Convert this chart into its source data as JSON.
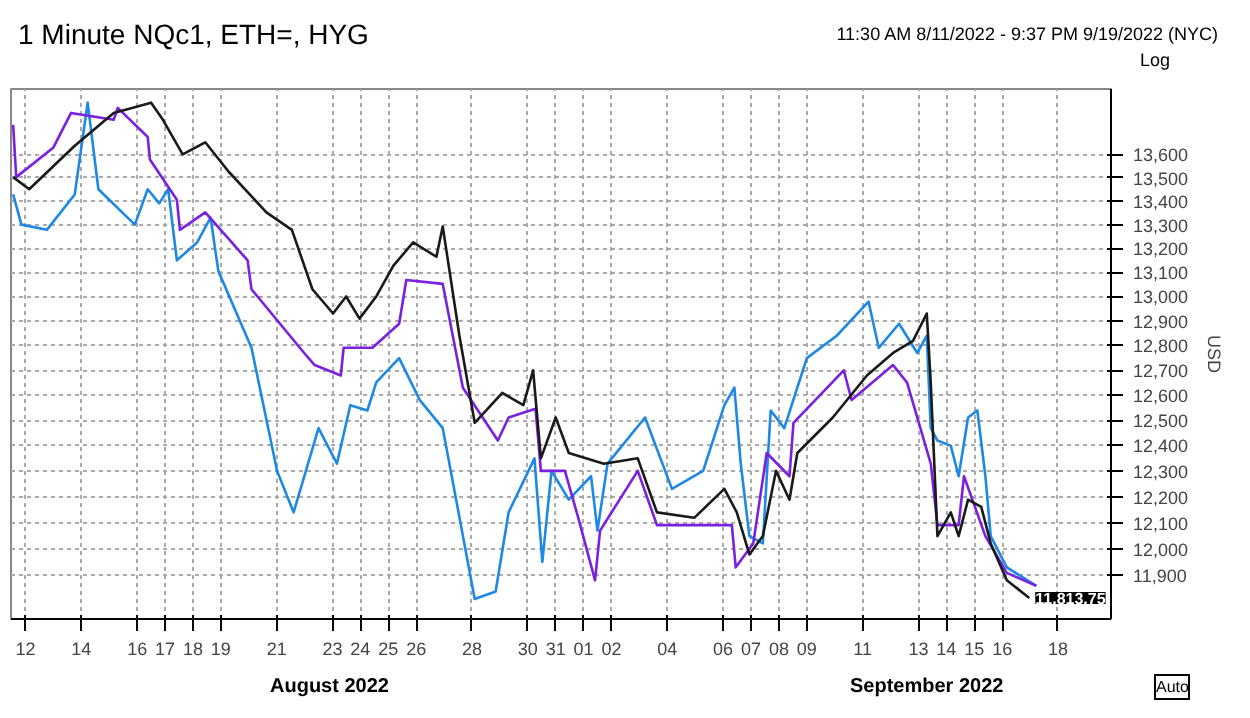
{
  "chart_data": {
    "type": "line",
    "title": "1 Minute NQc1, ETH=, HYG",
    "subtitle": "11:30 AM 8/11/2022 - 9:37 PM 9/19/2022 (NYC)",
    "ylabel": "USD",
    "log": true,
    "grid": true,
    "marker": "none",
    "line_style": "solid",
    "xlim": [
      "2022-08-11T11:30",
      "2022-09-19T21:37"
    ],
    "ylim": [
      11735,
      13885
    ],
    "xticks": [
      {
        "value": "2022-08-12",
        "label": "12"
      },
      {
        "value": "2022-08-14",
        "label": "14"
      },
      {
        "value": "2022-08-16",
        "label": "16"
      },
      {
        "value": "2022-08-17",
        "label": "17"
      },
      {
        "value": "2022-08-18",
        "label": "18"
      },
      {
        "value": "2022-08-19",
        "label": "19"
      },
      {
        "value": "2022-08-21",
        "label": "21"
      },
      {
        "value": "2022-08-23",
        "label": "23"
      },
      {
        "value": "2022-08-24",
        "label": "24"
      },
      {
        "value": "2022-08-25",
        "label": "25"
      },
      {
        "value": "2022-08-26",
        "label": "26"
      },
      {
        "value": "2022-08-28",
        "label": "28"
      },
      {
        "value": "2022-08-30",
        "label": "30"
      },
      {
        "value": "2022-08-31",
        "label": "31"
      },
      {
        "value": "2022-09-01",
        "label": "01"
      },
      {
        "value": "2022-09-02",
        "label": "02"
      },
      {
        "value": "2022-09-04",
        "label": "04"
      },
      {
        "value": "2022-09-06",
        "label": "06"
      },
      {
        "value": "2022-09-07",
        "label": "07"
      },
      {
        "value": "2022-09-08",
        "label": "08"
      },
      {
        "value": "2022-09-09",
        "label": "09"
      },
      {
        "value": "2022-09-11",
        "label": "11"
      },
      {
        "value": "2022-09-13",
        "label": "13"
      },
      {
        "value": "2022-09-14",
        "label": "14"
      },
      {
        "value": "2022-09-15",
        "label": "15"
      },
      {
        "value": "2022-09-16",
        "label": "16"
      },
      {
        "value": "2022-09-18",
        "label": "18"
      }
    ],
    "yticks": [
      {
        "value": 11900,
        "label": "11,900"
      },
      {
        "value": 12000,
        "label": "12,000"
      },
      {
        "value": 12100,
        "label": "12,100"
      },
      {
        "value": 12200,
        "label": "12,200"
      },
      {
        "value": 12300,
        "label": "12,300"
      },
      {
        "value": 12400,
        "label": "12,400"
      },
      {
        "value": 12500,
        "label": "12,500"
      },
      {
        "value": 12600,
        "label": "12,600"
      },
      {
        "value": 12700,
        "label": "12,700"
      },
      {
        "value": 12800,
        "label": "12,800"
      },
      {
        "value": 12900,
        "label": "12,900"
      },
      {
        "value": 13000,
        "label": "13,000"
      },
      {
        "value": 13100,
        "label": "13,100"
      },
      {
        "value": 13200,
        "label": "13,200"
      },
      {
        "value": 13300,
        "label": "13,300"
      },
      {
        "value": 13400,
        "label": "13,400"
      },
      {
        "value": 13500,
        "label": "13,500"
      },
      {
        "value": 13600,
        "label": "13,600"
      }
    ],
    "annotations": [
      "Log",
      "August 2022",
      "September 2022",
      "Auto",
      {
        "text": "11,813.75",
        "x": "2022-09-16T23:20",
        "y": 11813.75
      }
    ],
    "series": [
      {
        "color": "#1e88e5",
        "x": [
          "2022-08-11T13:20",
          "2022-08-11T20:30",
          "2022-08-12T18:20",
          "2022-08-13T18:20",
          "2022-08-14T05:25",
          "2022-08-14T14:40",
          "2022-08-15T22:00",
          "2022-08-16T09:05",
          "2022-08-16T19:00",
          "2022-08-17T02:40",
          "2022-08-17T10:10",
          "2022-08-18T03:35",
          "2022-08-18T15:10",
          "2022-08-18T21:50",
          "2022-08-20T02:20",
          "2022-08-21T00:20",
          "2022-08-21T14:35",
          "2022-08-22T12:00",
          "2022-08-23T03:50",
          "2022-08-23T15:20",
          "2022-08-24T06:00",
          "2022-08-24T13:40",
          "2022-08-25T09:20",
          "2022-08-26T03:00",
          "2022-08-26T22:50",
          "2022-08-28T02:20",
          "2022-08-28T20:20",
          "2022-08-29T07:30",
          "2022-08-30T05:45",
          "2022-08-30T12:30",
          "2022-08-30T20:25",
          "2022-08-31T11:15",
          "2022-09-01T06:25",
          "2022-09-01T11:55",
          "2022-09-01T20:35",
          "2022-09-03T04:50",
          "2022-09-04T04:00",
          "2022-09-05T06:50",
          "2022-09-06T01:05",
          "2022-09-06T09:40",
          "2022-09-06T15:10",
          "2022-09-06T22:35",
          "2022-09-07T10:10",
          "2022-09-07T16:55",
          "2022-09-08T04:35",
          "2022-09-09T00:00",
          "2022-09-10T01:40",
          "2022-09-11T05:05",
          "2022-09-11T13:50",
          "2022-09-12T07:20",
          "2022-09-12T23:00",
          "2022-09-13T07:10",
          "2022-09-13T10:35",
          "2022-09-13T16:20",
          "2022-09-14T03:50",
          "2022-09-14T10:35",
          "2022-09-14T18:40",
          "2022-09-15T02:40",
          "2022-09-15T09:35",
          "2022-09-15T14:10",
          "2022-09-16T04:00",
          "2022-09-17T05:20"
        ],
        "values": [
          13428,
          13300,
          13278,
          13428,
          13825,
          13450,
          13300,
          13450,
          13390,
          13450,
          13150,
          13225,
          13330,
          13105,
          12790,
          12300,
          12139,
          12468,
          12328,
          12559,
          12538,
          12650,
          12748,
          12580,
          12468,
          11810,
          11838,
          12139,
          12349,
          11950,
          12300,
          12188,
          12279,
          12069,
          12328,
          12510,
          12230,
          12300,
          12559,
          12629,
          12328,
          12048,
          12020,
          12538,
          12468,
          12748,
          12839,
          12979,
          12790,
          12888,
          12769,
          12839,
          12468,
          12419,
          12398,
          12279,
          12510,
          12538,
          12279,
          12048,
          11929,
          11859
        ]
      },
      {
        "color": "#7b1fe0",
        "x": [
          "2022-08-11T13:20",
          "2022-08-11T16:00",
          "2022-08-13T00:00",
          "2022-08-13T15:10",
          "2022-08-15T03:50",
          "2022-08-15T07:20",
          "2022-08-16T09:05",
          "2022-08-16T11:00",
          "2022-08-17T10:10",
          "2022-08-17T12:50",
          "2022-08-18T10:35",
          "2022-08-19T23:00",
          "2022-08-20T02:20",
          "2022-08-21T23:40",
          "2022-08-22T08:40",
          "2022-08-23T07:10",
          "2022-08-23T09:35",
          "2022-08-24T10:25",
          "2022-08-25T09:20",
          "2022-08-25T15:30",
          "2022-08-26T22:50",
          "2022-08-27T16:10",
          "2022-08-28T22:15",
          "2022-08-29T07:30",
          "2022-08-30T06:40",
          "2022-08-30T11:15",
          "2022-08-31T07:55",
          "2022-08-31T19:25",
          "2022-09-01T09:50",
          "2022-09-01T14:10",
          "2022-09-02T22:35",
          "2022-09-03T15:05",
          "2022-09-06T07:30",
          "2022-09-06T10:50",
          "2022-09-07T01:55",
          "2022-09-07T13:30",
          "2022-09-08T09:05",
          "2022-09-08T12:30",
          "2022-09-10T07:45",
          "2022-09-10T14:30",
          "2022-09-12T02:10",
          "2022-09-12T14:10",
          "2022-09-13T10:35",
          "2022-09-13T16:20",
          "2022-09-14T10:35",
          "2022-09-14T15:10",
          "2022-09-15T09:35",
          "2022-09-16T04:00",
          "2022-09-17T05:20"
        ],
        "values": [
          13728,
          13502,
          13630,
          13780,
          13750,
          13802,
          13675,
          13578,
          13405,
          13278,
          13352,
          13150,
          13030,
          12769,
          12720,
          12678,
          12790,
          12790,
          12888,
          13068,
          13052,
          12629,
          12419,
          12510,
          12545,
          12300,
          12300,
          12118,
          11880,
          12069,
          12300,
          12090,
          12090,
          11929,
          12020,
          12370,
          12279,
          12489,
          12699,
          12580,
          12720,
          12650,
          12328,
          12090,
          12090,
          12279,
          12048,
          11908,
          11859
        ]
      },
      {
        "color": "#1a1a1a",
        "x": [
          "2022-08-11T13:20",
          "2022-08-12T03:10",
          "2022-08-13T18:20",
          "2022-08-15T03:50",
          "2022-08-16T12:00",
          "2022-08-16T22:10",
          "2022-08-17T15:10",
          "2022-08-18T10:35",
          "2022-08-19T06:45",
          "2022-08-20T15:10",
          "2022-08-21T13:05",
          "2022-08-22T06:45",
          "2022-08-23T00:30",
          "2022-08-23T11:45",
          "2022-08-23T23:15",
          "2022-08-24T13:40",
          "2022-08-25T04:25",
          "2022-08-25T21:25",
          "2022-08-26T17:25",
          "2022-08-26T22:50",
          "2022-08-27T13:10",
          "2022-08-28T02:20",
          "2022-08-29T02:05",
          "2022-08-29T20:10",
          "2022-08-30T04:35",
          "2022-08-30T11:15",
          "2022-08-31T00:00",
          "2022-08-31T11:15",
          "2022-09-01T17:25",
          "2022-09-02T22:35",
          "2022-09-03T15:05",
          "2022-09-04T23:10",
          "2022-09-06T01:05",
          "2022-09-06T11:45",
          "2022-09-06T22:35",
          "2022-09-07T10:10",
          "2022-09-07T21:30",
          "2022-09-08T09:05",
          "2022-09-08T15:50",
          "2022-09-09T22:20",
          "2022-09-11T03:40",
          "2022-09-12T02:10",
          "2022-09-12T19:20",
          "2022-09-13T07:10",
          "2022-09-13T10:35",
          "2022-09-13T16:20",
          "2022-09-14T03:50",
          "2022-09-14T10:35",
          "2022-09-14T18:40",
          "2022-09-15T06:00",
          "2022-09-15T14:10",
          "2022-09-16T04:00",
          "2022-09-16T23:20"
        ],
        "values": [
          13502,
          13450,
          13637,
          13780,
          13825,
          13750,
          13600,
          13652,
          13525,
          13352,
          13278,
          13030,
          12930,
          13000,
          12909,
          13000,
          13128,
          13225,
          13165,
          13292,
          12839,
          12489,
          12608,
          12559,
          12699,
          12349,
          12510,
          12370,
          12328,
          12349,
          12139,
          12118,
          12230,
          12139,
          11978,
          12048,
          12300,
          12188,
          12370,
          12510,
          12678,
          12769,
          12818,
          12930,
          12650,
          12048,
          12139,
          12048,
          12188,
          12160,
          12020,
          11880,
          11813.75
        ]
      }
    ]
  }
}
